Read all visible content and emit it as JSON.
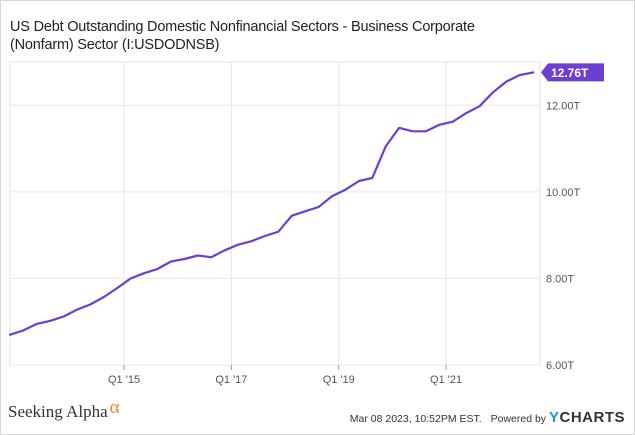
{
  "chart_data": {
    "type": "line",
    "title": "US Debt Outstanding Domestic Nonfinancial Sectors - Business Corporate (Nonfarm) Sector (I:USDODNSB)",
    "xlabel": "",
    "ylabel": "",
    "x_tick_labels": [
      "Q1 '15",
      "Q1 '17",
      "Q1 '19",
      "Q1 '21"
    ],
    "x_tick_positions": [
      2015.0,
      2017.0,
      2019.0,
      2021.0
    ],
    "xlim": [
      2012.875,
      2022.75
    ],
    "y_tick_labels": [
      "6.00T",
      "8.00T",
      "10.00T",
      "12.00T"
    ],
    "y_tick_values": [
      6.0,
      8.0,
      10.0,
      12.0
    ],
    "ylim": [
      6.0,
      13.0
    ],
    "grid": true,
    "series": [
      {
        "name": "US Debt Outstanding Domestic Nonfinancial Sectors - Business Corporate (Nonfarm) Sector",
        "color": "#6c3fd1",
        "last_value_label": "12.76T",
        "x": [
          2012.875,
          2013.125,
          2013.375,
          2013.625,
          2013.875,
          2014.125,
          2014.375,
          2014.625,
          2014.875,
          2015.125,
          2015.375,
          2015.625,
          2015.875,
          2016.125,
          2016.375,
          2016.625,
          2016.875,
          2017.125,
          2017.375,
          2017.625,
          2017.875,
          2018.125,
          2018.375,
          2018.625,
          2018.875,
          2019.125,
          2019.375,
          2019.625,
          2019.875,
          2020.125,
          2020.375,
          2020.625,
          2020.875,
          2021.125,
          2021.375,
          2021.625,
          2021.875,
          2022.125,
          2022.375,
          2022.625
        ],
        "y": [
          6.7,
          6.8,
          6.95,
          7.02,
          7.12,
          7.28,
          7.4,
          7.57,
          7.78,
          8.0,
          8.12,
          8.22,
          8.39,
          8.45,
          8.53,
          8.49,
          8.65,
          8.78,
          8.86,
          8.98,
          9.08,
          9.45,
          9.55,
          9.65,
          9.9,
          10.05,
          10.25,
          10.32,
          11.05,
          11.48,
          11.4,
          11.4,
          11.55,
          11.62,
          11.82,
          11.98,
          12.3,
          12.55,
          12.7,
          12.76
        ]
      }
    ]
  },
  "footer": {
    "brand": "Seeking Alpha",
    "alpha": "α",
    "timestamp": "Mar 08 2023, 10:52PM EST.",
    "powered_by": "Powered by",
    "ycharts_y": "Y",
    "ycharts_rest": "CHARTS"
  }
}
